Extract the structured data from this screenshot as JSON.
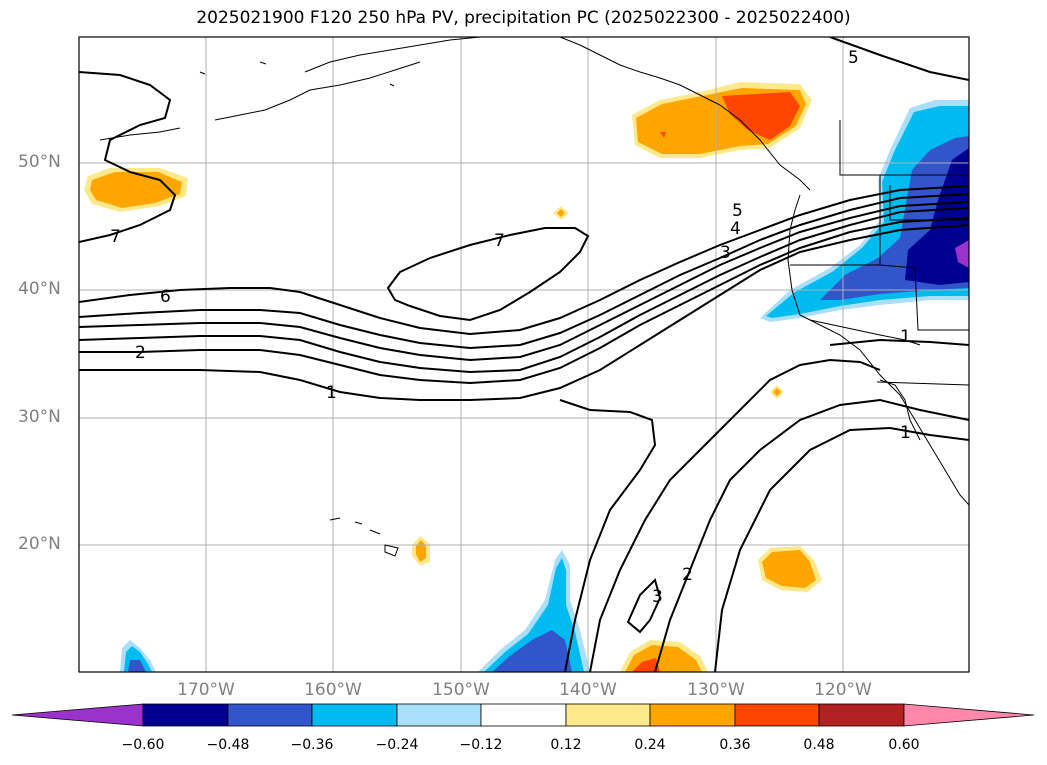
{
  "title": "2025021900 F120 250 hPa PV, precipitation PC (2025022300 - 2025022400)",
  "map": {
    "lat_labels": [
      "50°N",
      "40°N",
      "30°N",
      "20°N"
    ],
    "lon_labels": [
      "170°W",
      "160°W",
      "150°W",
      "140°W",
      "130°W",
      "120°W"
    ],
    "pv_contour_labels": [
      "7",
      "6",
      "2",
      "7",
      "1",
      "5",
      "4",
      "3",
      "5",
      "1",
      "1",
      "2",
      "3"
    ],
    "gridlines": true
  },
  "colorbar": {
    "ticks": [
      "−0.60",
      "−0.48",
      "−0.36",
      "−0.24",
      "−0.12",
      "0.12",
      "0.24",
      "0.36",
      "0.48",
      "0.60"
    ],
    "colors": [
      "#9933cc",
      "#000090",
      "#3355cc",
      "#00bbf0",
      "#aadffa",
      "#ffffff",
      "#fde98a",
      "#ffa500",
      "#ff4500",
      "#b22222",
      "#ff88aa"
    ]
  }
}
